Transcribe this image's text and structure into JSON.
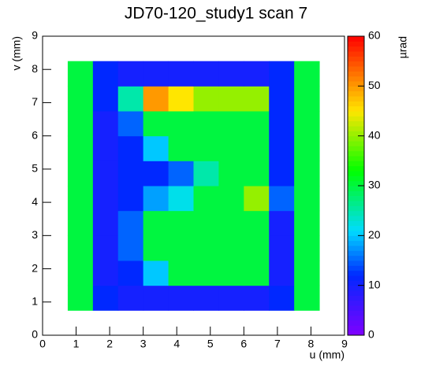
{
  "chart_data": {
    "type": "heatmap",
    "title": "JD70-120_study1 scan 7",
    "x_label": "u (mm)",
    "y_label": "v (mm)",
    "z_label": "µrad",
    "xlim": [
      0,
      9
    ],
    "ylim": [
      0,
      9
    ],
    "zlim": [
      0,
      60
    ],
    "xticks": [
      0,
      1,
      2,
      3,
      4,
      5,
      6,
      7,
      8,
      9
    ],
    "yticks": [
      0,
      1,
      2,
      3,
      4,
      5,
      6,
      7,
      8,
      9
    ],
    "zticks": [
      0,
      10,
      20,
      30,
      40,
      50,
      60
    ],
    "xbins": [
      0.75,
      1.5,
      2.25,
      3,
      3.75,
      4.5,
      5.25,
      6,
      6.75,
      7.5,
      8.25
    ],
    "ybins": [
      0.75,
      1.5,
      2.25,
      3,
      3.75,
      4.5,
      5.25,
      6,
      6.75,
      7.5,
      8.25
    ],
    "z": [
      [
        30,
        12,
        10,
        10,
        10,
        10,
        10,
        10,
        12,
        30
      ],
      [
        30,
        10,
        12,
        20,
        30,
        30,
        30,
        30,
        10,
        30
      ],
      [
        30,
        10,
        15,
        30,
        30,
        30,
        30,
        30,
        10,
        30
      ],
      [
        30,
        10,
        15,
        30,
        30,
        30,
        30,
        30,
        10,
        30
      ],
      [
        30,
        10,
        12,
        18,
        22,
        30,
        30,
        40,
        15,
        30
      ],
      [
        30,
        10,
        12,
        12,
        15,
        25,
        30,
        30,
        12,
        30
      ],
      [
        30,
        10,
        12,
        20,
        30,
        30,
        30,
        30,
        12,
        30
      ],
      [
        30,
        10,
        15,
        30,
        30,
        30,
        30,
        30,
        12,
        30
      ],
      [
        30,
        12,
        25,
        50,
        45,
        40,
        40,
        40,
        12,
        30
      ],
      [
        30,
        12,
        10,
        10,
        10,
        10,
        10,
        10,
        12,
        30
      ]
    ]
  }
}
